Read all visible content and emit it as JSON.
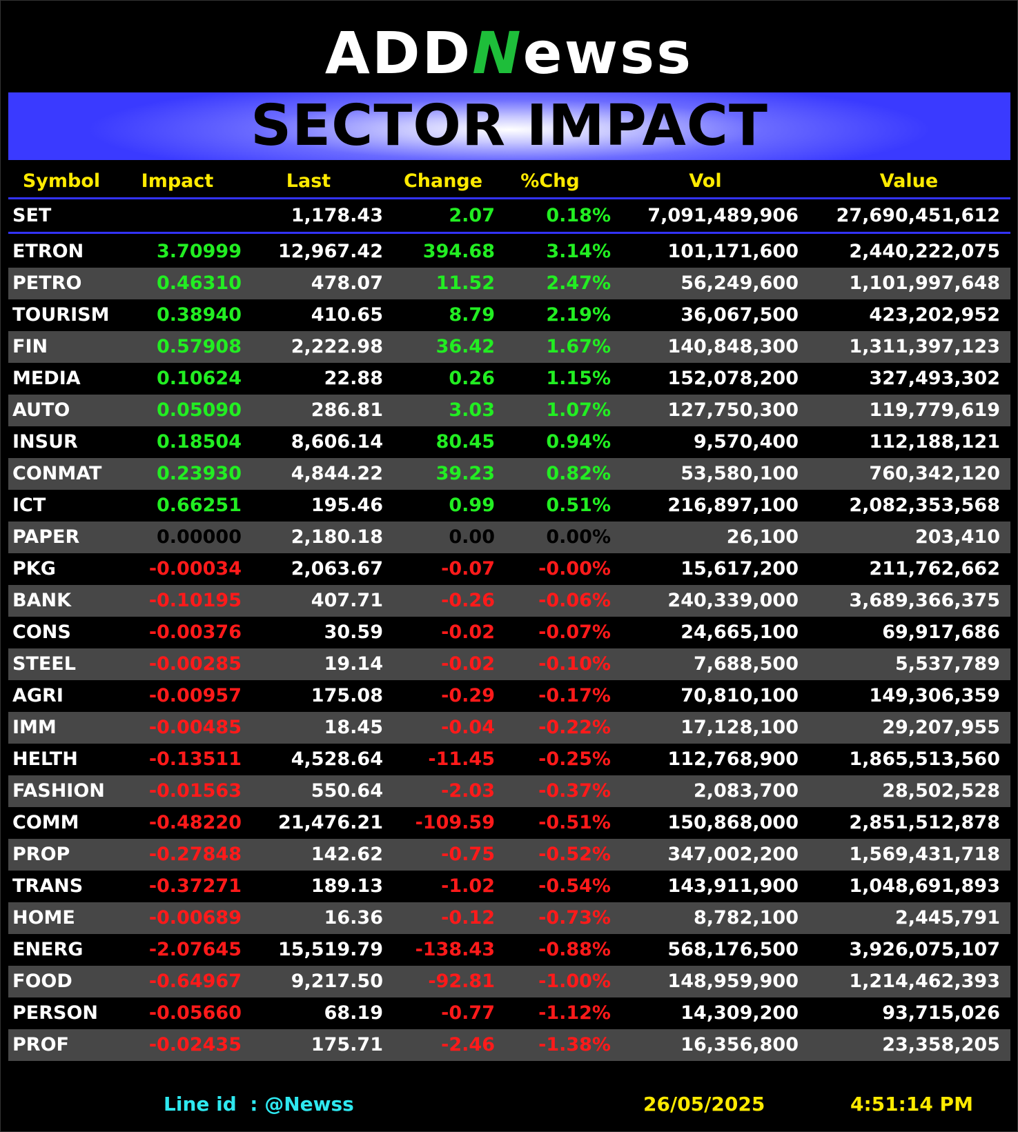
{
  "logo": {
    "part1": "ADD",
    "part2": "N",
    "part3": "ewss"
  },
  "banner_title": "SECTOR IMPACT",
  "columns": [
    "Symbol",
    "Impact",
    "Last",
    "Change",
    "%Chg",
    "Vol",
    "Value"
  ],
  "index_row": {
    "symbol": "SET",
    "impact": "",
    "last": "1,178.43",
    "change": "2.07",
    "pct": "0.18%",
    "vol": "7,091,489,906",
    "value": "27,690,451,612"
  },
  "rows": [
    {
      "symbol": "ETRON",
      "impact": "3.70999",
      "last": "12,967.42",
      "change": "394.68",
      "pct": "3.14%",
      "vol": "101,171,600",
      "value": "2,440,222,075"
    },
    {
      "symbol": "PETRO",
      "impact": "0.46310",
      "last": "478.07",
      "change": "11.52",
      "pct": "2.47%",
      "vol": "56,249,600",
      "value": "1,101,997,648"
    },
    {
      "symbol": "TOURISM",
      "impact": "0.38940",
      "last": "410.65",
      "change": "8.79",
      "pct": "2.19%",
      "vol": "36,067,500",
      "value": "423,202,952"
    },
    {
      "symbol": "FIN",
      "impact": "0.57908",
      "last": "2,222.98",
      "change": "36.42",
      "pct": "1.67%",
      "vol": "140,848,300",
      "value": "1,311,397,123"
    },
    {
      "symbol": "MEDIA",
      "impact": "0.10624",
      "last": "22.88",
      "change": "0.26",
      "pct": "1.15%",
      "vol": "152,078,200",
      "value": "327,493,302"
    },
    {
      "symbol": "AUTO",
      "impact": "0.05090",
      "last": "286.81",
      "change": "3.03",
      "pct": "1.07%",
      "vol": "127,750,300",
      "value": "119,779,619"
    },
    {
      "symbol": "INSUR",
      "impact": "0.18504",
      "last": "8,606.14",
      "change": "80.45",
      "pct": "0.94%",
      "vol": "9,570,400",
      "value": "112,188,121"
    },
    {
      "symbol": "CONMAT",
      "impact": "0.23930",
      "last": "4,844.22",
      "change": "39.23",
      "pct": "0.82%",
      "vol": "53,580,100",
      "value": "760,342,120"
    },
    {
      "symbol": "ICT",
      "impact": "0.66251",
      "last": "195.46",
      "change": "0.99",
      "pct": "0.51%",
      "vol": "216,897,100",
      "value": "2,082,353,568"
    },
    {
      "symbol": "PAPER",
      "impact": "0.00000",
      "last": "2,180.18",
      "change": "0.00",
      "pct": "0.00%",
      "vol": "26,100",
      "value": "203,410"
    },
    {
      "symbol": "PKG",
      "impact": "-0.00034",
      "last": "2,063.67",
      "change": "-0.07",
      "pct": "-0.00%",
      "vol": "15,617,200",
      "value": "211,762,662"
    },
    {
      "symbol": "BANK",
      "impact": "-0.10195",
      "last": "407.71",
      "change": "-0.26",
      "pct": "-0.06%",
      "vol": "240,339,000",
      "value": "3,689,366,375"
    },
    {
      "symbol": "CONS",
      "impact": "-0.00376",
      "last": "30.59",
      "change": "-0.02",
      "pct": "-0.07%",
      "vol": "24,665,100",
      "value": "69,917,686"
    },
    {
      "symbol": "STEEL",
      "impact": "-0.00285",
      "last": "19.14",
      "change": "-0.02",
      "pct": "-0.10%",
      "vol": "7,688,500",
      "value": "5,537,789"
    },
    {
      "symbol": "AGRI",
      "impact": "-0.00957",
      "last": "175.08",
      "change": "-0.29",
      "pct": "-0.17%",
      "vol": "70,810,100",
      "value": "149,306,359"
    },
    {
      "symbol": "IMM",
      "impact": "-0.00485",
      "last": "18.45",
      "change": "-0.04",
      "pct": "-0.22%",
      "vol": "17,128,100",
      "value": "29,207,955"
    },
    {
      "symbol": "HELTH",
      "impact": "-0.13511",
      "last": "4,528.64",
      "change": "-11.45",
      "pct": "-0.25%",
      "vol": "112,768,900",
      "value": "1,865,513,560"
    },
    {
      "symbol": "FASHION",
      "impact": "-0.01563",
      "last": "550.64",
      "change": "-2.03",
      "pct": "-0.37%",
      "vol": "2,083,700",
      "value": "28,502,528"
    },
    {
      "symbol": "COMM",
      "impact": "-0.48220",
      "last": "21,476.21",
      "change": "-109.59",
      "pct": "-0.51%",
      "vol": "150,868,000",
      "value": "2,851,512,878"
    },
    {
      "symbol": "PROP",
      "impact": "-0.27848",
      "last": "142.62",
      "change": "-0.75",
      "pct": "-0.52%",
      "vol": "347,002,200",
      "value": "1,569,431,718"
    },
    {
      "symbol": "TRANS",
      "impact": "-0.37271",
      "last": "189.13",
      "change": "-1.02",
      "pct": "-0.54%",
      "vol": "143,911,900",
      "value": "1,048,691,893"
    },
    {
      "symbol": "HOME",
      "impact": "-0.00689",
      "last": "16.36",
      "change": "-0.12",
      "pct": "-0.73%",
      "vol": "8,782,100",
      "value": "2,445,791"
    },
    {
      "symbol": "ENERG",
      "impact": "-2.07645",
      "last": "15,519.79",
      "change": "-138.43",
      "pct": "-0.88%",
      "vol": "568,176,500",
      "value": "3,926,075,107"
    },
    {
      "symbol": "FOOD",
      "impact": "-0.64967",
      "last": "9,217.50",
      "change": "-92.81",
      "pct": "-1.00%",
      "vol": "148,959,900",
      "value": "1,214,462,393"
    },
    {
      "symbol": "PERSON",
      "impact": "-0.05660",
      "last": "68.19",
      "change": "-0.77",
      "pct": "-1.12%",
      "vol": "14,309,200",
      "value": "93,715,026"
    },
    {
      "symbol": "PROF",
      "impact": "-0.02435",
      "last": "175.71",
      "change": "-2.46",
      "pct": "-1.38%",
      "vol": "16,356,800",
      "value": "23,358,205"
    }
  ],
  "footer": {
    "line_id": "Line id  : @Newss",
    "date": "26/05/2025",
    "time": "4:51:14 PM"
  },
  "colors": {
    "positive": "#22ee22",
    "negative": "#ff1a1a",
    "zero": "#000000",
    "header": "#ffea00",
    "accent": "#3333ff",
    "footer_line": "#2ee8f0"
  }
}
